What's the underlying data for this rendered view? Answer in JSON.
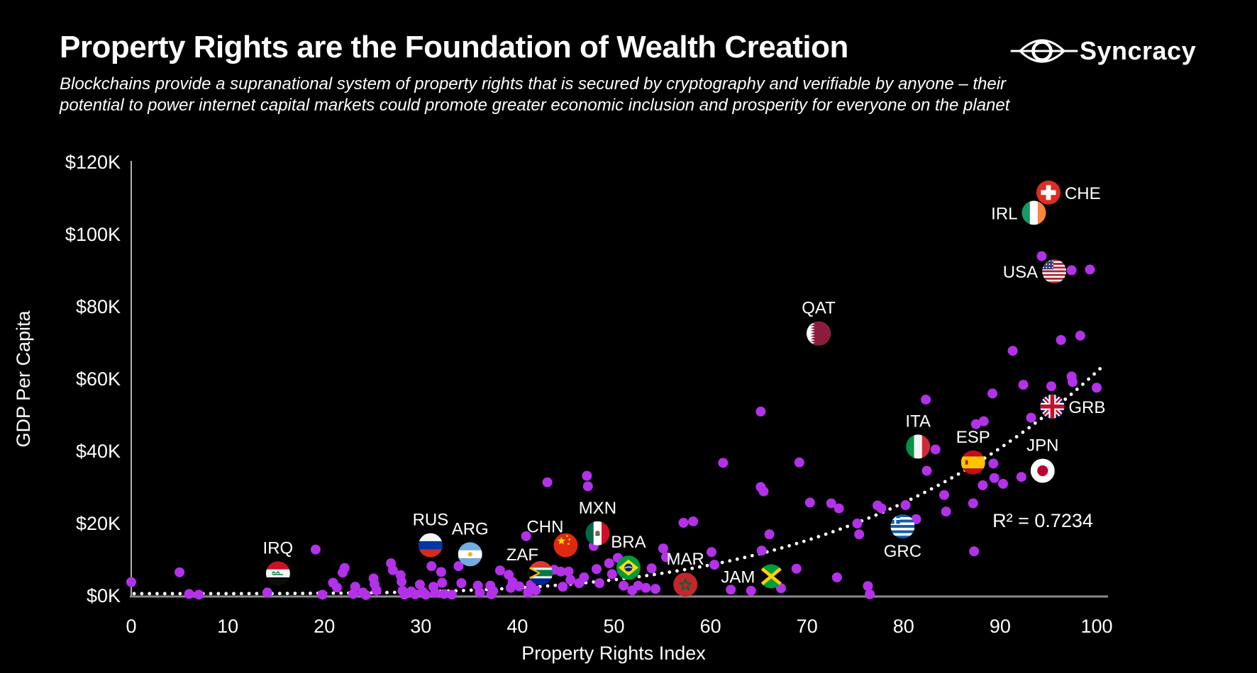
{
  "header": {
    "title": "Property Rights are the Foundation of Wealth Creation",
    "subtitle_lines": [
      "Blockchains provide a supranational system of property rights that is secured by cryptography and verifiable by anyone – their",
      "potential to power internet capital markets could promote greater economic inclusion and prosperity for everyone on the planet"
    ],
    "logo_text": "Syncracy"
  },
  "chart_data": {
    "type": "scatter",
    "title": "Property Rights are the Foundation of Wealth Creation",
    "xlabel": "Property Rights Index",
    "ylabel": "GDP Per Capita",
    "xlim": [
      0,
      100
    ],
    "ylim_k": [
      0,
      120
    ],
    "x_ticks": [
      0,
      10,
      20,
      30,
      40,
      50,
      60,
      70,
      80,
      90,
      100
    ],
    "y_ticks_k": [
      0,
      20,
      40,
      60,
      80,
      100,
      120
    ],
    "y_tick_labels": [
      "$0K",
      "$20K",
      "$40K",
      "$60K",
      "$80K",
      "$100K",
      "$120K"
    ],
    "grid": false,
    "legend": "none",
    "background": "#000000",
    "point_color": "#b431ea",
    "trend_color": "#ffffff",
    "trendline": {
      "type": "power4",
      "label": "R² = 0.7234",
      "r_squared": 0.7234,
      "base_k": 0.6,
      "scale_k": 61.4,
      "exponent": 4
    },
    "labeled_countries": [
      {
        "code": "IRQ",
        "x": 15.2,
        "gdp_k": 6.2,
        "label_side": "top"
      },
      {
        "code": "RUS",
        "x": 31.0,
        "gdp_k": 14.0,
        "label_side": "top"
      },
      {
        "code": "ARG",
        "x": 35.1,
        "gdp_k": 11.5,
        "label_side": "top"
      },
      {
        "code": "ZAF",
        "x": 42.4,
        "gdp_k": 6.3,
        "label_side": "top-left"
      },
      {
        "code": "CHN",
        "x": 45.0,
        "gdp_k": 14.0,
        "label_side": "top-left"
      },
      {
        "code": "MXN",
        "x": 48.3,
        "gdp_k": 17.3,
        "label_side": "top"
      },
      {
        "code": "BRA",
        "x": 51.5,
        "gdp_k": 7.8,
        "label_side": "top"
      },
      {
        "code": "MAR",
        "x": 57.4,
        "gdp_k": 3.1,
        "label_side": "top"
      },
      {
        "code": "JAM",
        "x": 66.3,
        "gdp_k": 5.4,
        "label_side": "left"
      },
      {
        "code": "QAT",
        "x": 71.2,
        "gdp_k": 72.6,
        "label_side": "top"
      },
      {
        "code": "GRC",
        "x": 79.9,
        "gdp_k": 19.2,
        "label_side": "bottom"
      },
      {
        "code": "ITA",
        "x": 81.5,
        "gdp_k": 41.3,
        "label_side": "top"
      },
      {
        "code": "ESP",
        "x": 87.2,
        "gdp_k": 36.9,
        "label_side": "top"
      },
      {
        "code": "JPN",
        "x": 94.4,
        "gdp_k": 34.6,
        "label_side": "top"
      },
      {
        "code": "GRB",
        "x": 95.4,
        "gdp_k": 52.4,
        "label_side": "right"
      },
      {
        "code": "USA",
        "x": 95.6,
        "gdp_k": 89.8,
        "label_side": "left"
      },
      {
        "code": "IRL",
        "x": 93.5,
        "gdp_k": 106.0,
        "label_side": "left"
      },
      {
        "code": "CHE",
        "x": 95.0,
        "gdp_k": 111.6,
        "label_side": "right"
      }
    ],
    "points": [
      [
        0,
        3.8
      ],
      [
        5,
        6.5
      ],
      [
        6,
        0.5
      ],
      [
        7,
        0.3
      ],
      [
        14.1,
        0.9
      ],
      [
        19.1,
        12.8
      ],
      [
        19.8,
        0.3
      ],
      [
        20.9,
        3.6
      ],
      [
        21.3,
        2.3
      ],
      [
        21.9,
        6.4
      ],
      [
        22.1,
        7.7
      ],
      [
        23,
        0.5
      ],
      [
        23.2,
        2.5
      ],
      [
        24,
        0.9
      ],
      [
        24.3,
        0.2
      ],
      [
        25.1,
        4.8
      ],
      [
        25.2,
        3.2
      ],
      [
        25.4,
        1.5
      ],
      [
        26.9,
        9
      ],
      [
        27.1,
        7.1
      ],
      [
        27.9,
        5.7
      ],
      [
        28,
        3.9
      ],
      [
        28.1,
        1.4
      ],
      [
        28.3,
        0.3
      ],
      [
        29,
        1.2
      ],
      [
        29.4,
        0.4
      ],
      [
        29.9,
        3.1
      ],
      [
        30.2,
        1.1
      ],
      [
        30.5,
        0.3
      ],
      [
        31.1,
        8.2
      ],
      [
        31.3,
        2.5
      ],
      [
        31.5,
        0.8
      ],
      [
        32.1,
        6.6
      ],
      [
        32.2,
        3.6
      ],
      [
        32.4,
        0.5
      ],
      [
        33.2,
        0.3
      ],
      [
        33.9,
        8.2
      ],
      [
        34.2,
        3.5
      ],
      [
        35.9,
        2.8
      ],
      [
        36.1,
        0.9
      ],
      [
        37.2,
        2.8
      ],
      [
        37.3,
        0.4
      ],
      [
        37.5,
        1.3
      ],
      [
        38.2,
        7
      ],
      [
        39.1,
        5.8
      ],
      [
        39.3,
        2.2
      ],
      [
        39.5,
        3.8
      ],
      [
        40.2,
        2.6
      ],
      [
        40.9,
        16.5
      ],
      [
        41.1,
        0.9
      ],
      [
        41.4,
        3.1
      ],
      [
        41.9,
        1.5
      ],
      [
        43.1,
        31.4
      ],
      [
        43.8,
        7.2
      ],
      [
        44.5,
        6.7
      ],
      [
        44.7,
        2.5
      ],
      [
        45.3,
        6.7
      ],
      [
        45.5,
        4.4
      ],
      [
        46.4,
        3.5
      ],
      [
        46.9,
        5.1
      ],
      [
        47.2,
        33.2
      ],
      [
        47.3,
        30.3
      ],
      [
        47.9,
        13.8
      ],
      [
        48.2,
        7.4
      ],
      [
        48.5,
        3.5
      ],
      [
        49.5,
        9
      ],
      [
        49.8,
        6
      ],
      [
        50.4,
        10.5
      ],
      [
        51,
        2.8
      ],
      [
        51.9,
        1.5
      ],
      [
        52.5,
        2.8
      ],
      [
        53.3,
        2.2
      ],
      [
        53.9,
        7.6
      ],
      [
        54.3,
        1.9
      ],
      [
        55.1,
        13.1
      ],
      [
        55.4,
        10.7
      ],
      [
        57.2,
        20.2
      ],
      [
        58.2,
        20.6
      ],
      [
        60.1,
        12.1
      ],
      [
        60.4,
        8.6
      ],
      [
        61.3,
        36.8
      ],
      [
        62.1,
        1.7
      ],
      [
        64.2,
        1.4
      ],
      [
        65.2,
        51
      ],
      [
        65.2,
        30.1
      ],
      [
        65.5,
        28.9
      ],
      [
        65.3,
        12.5
      ],
      [
        66.1,
        17
      ],
      [
        67.3,
        2.1
      ],
      [
        68.9,
        7.5
      ],
      [
        69.2,
        36.9
      ],
      [
        70.3,
        25.8
      ],
      [
        72.5,
        25.6
      ],
      [
        73.1,
        5.1
      ],
      [
        73.3,
        24.2
      ],
      [
        75.2,
        20
      ],
      [
        75.4,
        17
      ],
      [
        76.3,
        2.7
      ],
      [
        76.5,
        0.4
      ],
      [
        77.3,
        25
      ],
      [
        77.7,
        24.2
      ],
      [
        80.2,
        25.1
      ],
      [
        81.3,
        21.2
      ],
      [
        82.3,
        54.3
      ],
      [
        82.4,
        34.6
      ],
      [
        83.3,
        40.5
      ],
      [
        84.2,
        27.9
      ],
      [
        84.4,
        23.3
      ],
      [
        87.2,
        25.6
      ],
      [
        87.3,
        12.3
      ],
      [
        87.5,
        47.5
      ],
      [
        88.3,
        48.3
      ],
      [
        88.2,
        30.6
      ],
      [
        89.2,
        56
      ],
      [
        89.3,
        36.6
      ],
      [
        89.4,
        32.6
      ],
      [
        90.3,
        31
      ],
      [
        91.3,
        67.8
      ],
      [
        92.2,
        32.9
      ],
      [
        92.4,
        58.4
      ],
      [
        93.2,
        49.3
      ],
      [
        94.3,
        94
      ],
      [
        95.3,
        58
      ],
      [
        96.3,
        70.8
      ],
      [
        97.4,
        90.1
      ],
      [
        97.4,
        60.7
      ],
      [
        97.5,
        59.2
      ],
      [
        98.3,
        72
      ],
      [
        99.3,
        90.3
      ],
      [
        100,
        57.6
      ]
    ]
  }
}
